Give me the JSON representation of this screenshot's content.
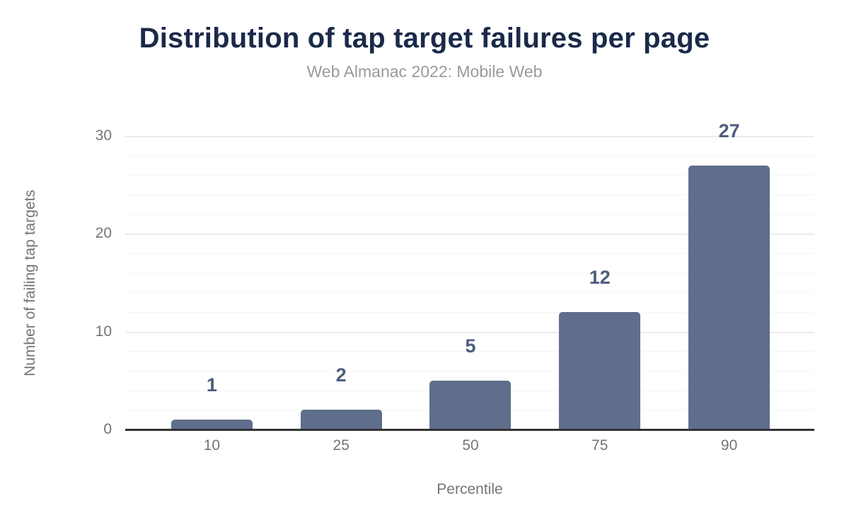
{
  "chart_data": {
    "type": "bar",
    "title": "Distribution of tap target failures per page",
    "subtitle": "Web Almanac 2022: Mobile Web",
    "xlabel": "Percentile",
    "ylabel": "Number of failing tap targets",
    "categories": [
      "10",
      "25",
      "50",
      "75",
      "90"
    ],
    "values": [
      1,
      2,
      5,
      12,
      27
    ],
    "ylim": [
      0,
      30
    ],
    "yticks": [
      0,
      10,
      20,
      30
    ],
    "minor_grid_step": 2,
    "grid": true,
    "legend": "none",
    "annotations": [
      "1",
      "2",
      "5",
      "12",
      "27"
    ],
    "colors": {
      "bar": "#5f6e8c",
      "annotation": "#4e5d7d",
      "title": "#1b2a49",
      "subtitle": "#9a9a9a",
      "axis_text": "#757575",
      "axis_line": "#333333",
      "major_grid": "#ececec",
      "minor_grid": "#f5f5f5",
      "background": "#ffffff"
    }
  }
}
